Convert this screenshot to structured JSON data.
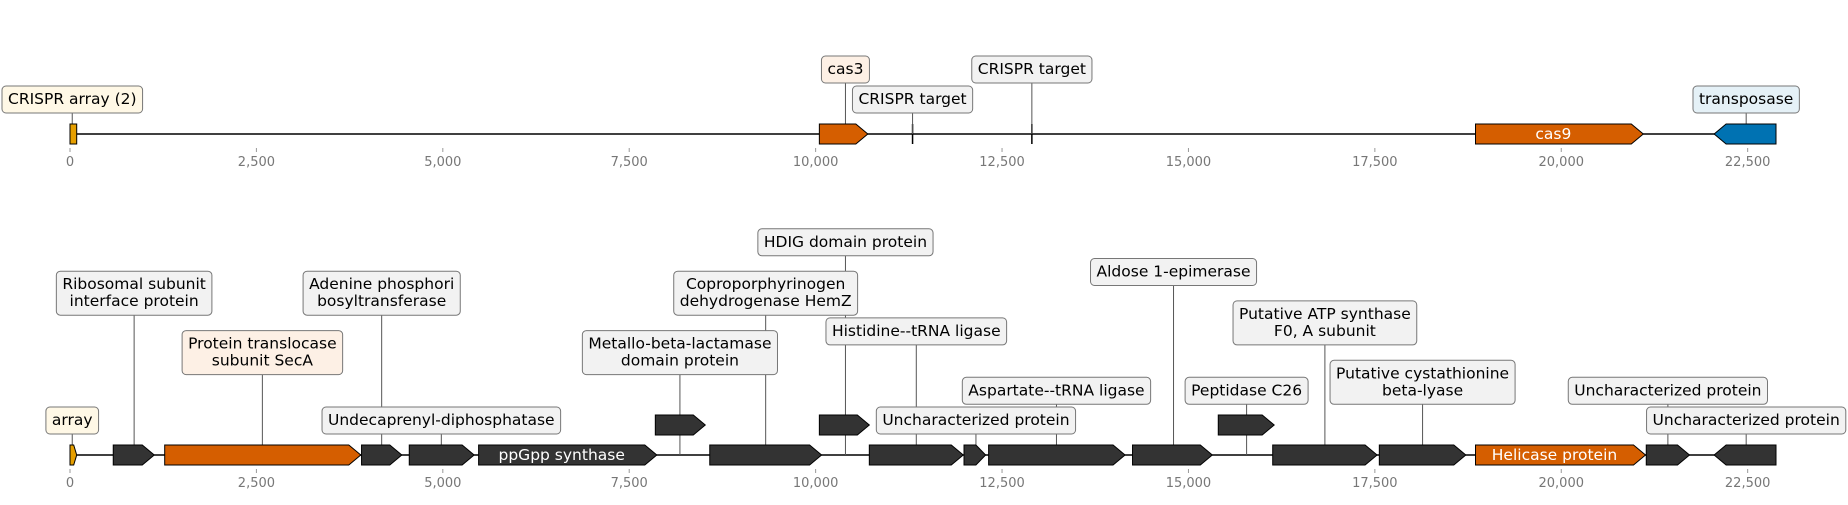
{
  "colors": {
    "orange": "#D55E00",
    "dark": "#333333",
    "blue": "#0072B2",
    "gold": "#E69F00",
    "box_yellow": "#FFF8E6",
    "box_orange": "#FDF0E5",
    "box_blue": "#E5F1F7",
    "box_gray": "#F2F2F2"
  },
  "axis": {
    "ticks": [
      0,
      2500,
      5000,
      7500,
      10000,
      12500,
      15000,
      17500,
      20000,
      22500
    ],
    "tick_labels": [
      "0",
      "2,500",
      "5,000",
      "7,500",
      "10,000",
      "12,500",
      "15,000",
      "17,500",
      "20,000",
      "22,500"
    ]
  },
  "tracks": [
    {
      "features": [
        {
          "start": 0,
          "end": 90,
          "strand": 0,
          "color": "gold"
        },
        {
          "start": 10050,
          "end": 10700,
          "strand": 1,
          "color": "orange"
        },
        {
          "start": 18850,
          "end": 21100,
          "strand": 1,
          "color": "orange",
          "label": "cas9"
        },
        {
          "start": 22050,
          "end": 22880,
          "strand": -1,
          "color": "blue"
        }
      ],
      "markers": [
        11300,
        12900
      ],
      "annotations": [
        {
          "text": [
            "CRISPR array (2)"
          ],
          "x": 30,
          "tier": 0,
          "box": "box_yellow"
        },
        {
          "text": [
            "cas3"
          ],
          "x": 10400,
          "tier": 1,
          "box": "box_orange"
        },
        {
          "text": [
            "CRISPR target"
          ],
          "x": 11300,
          "tier": 0,
          "box": "box_gray"
        },
        {
          "text": [
            "CRISPR target"
          ],
          "x": 12900,
          "tier": 1,
          "box": "box_gray"
        },
        {
          "text": [
            "transposase"
          ],
          "x": 22480,
          "tier": 0,
          "box": "box_blue"
        }
      ]
    },
    {
      "features": [
        {
          "start": 0,
          "end": 90,
          "strand": 1,
          "color": "gold"
        },
        {
          "start": 580,
          "end": 1130,
          "strand": 1,
          "color": "dark"
        },
        {
          "start": 1270,
          "end": 3900,
          "strand": 1,
          "color": "orange"
        },
        {
          "start": 3910,
          "end": 4450,
          "strand": 1,
          "color": "dark"
        },
        {
          "start": 4550,
          "end": 5420,
          "strand": 1,
          "color": "dark"
        },
        {
          "start": 5480,
          "end": 7870,
          "strand": 1,
          "color": "dark",
          "label": "ppGpp synthase"
        },
        {
          "start": 7850,
          "end": 8520,
          "strand": 1,
          "color": "dark",
          "raised": true
        },
        {
          "start": 8580,
          "end": 10080,
          "strand": 1,
          "color": "dark"
        },
        {
          "start": 10050,
          "end": 10720,
          "strand": 1,
          "color": "dark",
          "raised": true
        },
        {
          "start": 10720,
          "end": 11980,
          "strand": 1,
          "color": "dark"
        },
        {
          "start": 11990,
          "end": 12280,
          "strand": 1,
          "color": "dark"
        },
        {
          "start": 12320,
          "end": 14150,
          "strand": 1,
          "color": "dark"
        },
        {
          "start": 14250,
          "end": 15320,
          "strand": 1,
          "color": "dark"
        },
        {
          "start": 15400,
          "end": 16150,
          "strand": 1,
          "color": "dark",
          "raised": true
        },
        {
          "start": 16130,
          "end": 17530,
          "strand": 1,
          "color": "dark"
        },
        {
          "start": 17560,
          "end": 18720,
          "strand": 1,
          "color": "dark"
        },
        {
          "start": 18850,
          "end": 21130,
          "strand": 1,
          "color": "orange",
          "label": "Helicase protein"
        },
        {
          "start": 21140,
          "end": 21720,
          "strand": 1,
          "color": "dark"
        },
        {
          "start": 22050,
          "end": 22880,
          "strand": -1,
          "color": "dark"
        }
      ],
      "markers": [],
      "annotations": [
        {
          "text": [
            "array"
          ],
          "x": 30,
          "tier": 0,
          "box": "box_yellow"
        },
        {
          "text": [
            "Ribosomal subunit",
            "interface protein"
          ],
          "x": 860,
          "tier": 4,
          "box": "box_gray"
        },
        {
          "text": [
            "Protein translocase",
            "subunit SecA"
          ],
          "x": 2580,
          "tier": 2,
          "box": "box_orange"
        },
        {
          "text": [
            "Adenine phosphori",
            "bosyltransferase"
          ],
          "x": 4180,
          "tier": 4,
          "box": "box_gray"
        },
        {
          "text": [
            "Undecaprenyl-diphosphatase"
          ],
          "x": 4980,
          "tier": 0,
          "box": "box_gray"
        },
        {
          "text": [
            "Metallo-beta-lactamase",
            "domain protein"
          ],
          "x": 8180,
          "tier": 2,
          "box": "box_gray"
        },
        {
          "text": [
            "Coproporphyrinogen",
            "dehydrogenase HemZ"
          ],
          "x": 9330,
          "tier": 4,
          "box": "box_gray"
        },
        {
          "text": [
            "HDIG domain protein"
          ],
          "x": 10400,
          "tier": 6,
          "box": "box_gray"
        },
        {
          "text": [
            "Histidine--tRNA ligase"
          ],
          "x": 11350,
          "tier": 3,
          "box": "box_gray"
        },
        {
          "text": [
            "Uncharacterized protein"
          ],
          "x": 12150,
          "tier": 0,
          "box": "box_gray"
        },
        {
          "text": [
            "Aspartate--tRNA ligase"
          ],
          "x": 13230,
          "tier": 1,
          "box": "box_gray"
        },
        {
          "text": [
            "Aldose 1-epimerase"
          ],
          "x": 14800,
          "tier": 5,
          "box": "box_gray"
        },
        {
          "text": [
            "Peptidase C26"
          ],
          "x": 15780,
          "tier": 1,
          "box": "box_gray"
        },
        {
          "text": [
            "Putative ATP synthase",
            "F0, A subunit"
          ],
          "x": 16830,
          "tier": 3,
          "box": "box_gray"
        },
        {
          "text": [
            "Putative cystathionine",
            "beta-lyase"
          ],
          "x": 18140,
          "tier": 1,
          "box": "box_gray"
        },
        {
          "text": [
            "Uncharacterized protein"
          ],
          "x": 21430,
          "tier": 1,
          "box": "box_gray"
        },
        {
          "text": [
            "Uncharacterized protein"
          ],
          "x": 22480,
          "tier": 0,
          "box": "box_gray"
        }
      ]
    }
  ]
}
